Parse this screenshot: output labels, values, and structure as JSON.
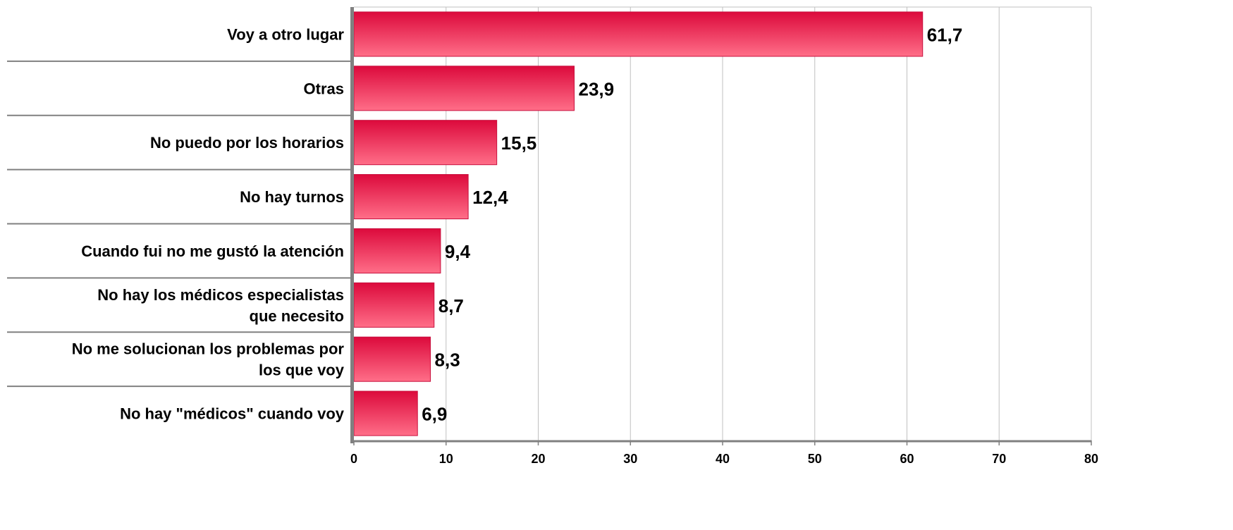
{
  "chart_data": {
    "type": "bar",
    "orientation": "horizontal",
    "categories": [
      [
        "Voy a otro lugar"
      ],
      [
        "Otras"
      ],
      [
        "No puedo por los horarios"
      ],
      [
        "No hay turnos"
      ],
      [
        "Cuando fui no me gustó la atención"
      ],
      [
        "No hay los médicos especialistas",
        "que necesito"
      ],
      [
        "No me solucionan los problemas por",
        "los que voy"
      ],
      [
        "No hay \"médicos\" cuando voy"
      ]
    ],
    "values": [
      61.7,
      23.9,
      15.5,
      12.4,
      9.4,
      8.7,
      8.3,
      6.9
    ],
    "value_labels": [
      "61,7",
      "23,9",
      "15,5",
      "12,4",
      "9,4",
      "8,7",
      "8,3",
      "6,9"
    ],
    "xlim": [
      0,
      80
    ],
    "x_ticks": [
      0,
      10,
      20,
      30,
      40,
      50,
      60,
      70,
      80
    ],
    "title": "",
    "xlabel": "",
    "ylabel": "",
    "grid": true,
    "legend": "none",
    "colors": {
      "bar_top": "#dc0a3c",
      "bar_bottom": "#ff6e88",
      "bar_stroke": "#c8103e",
      "gridline": "#c0c0c0",
      "axis": "#808080",
      "text": "#000000"
    }
  }
}
